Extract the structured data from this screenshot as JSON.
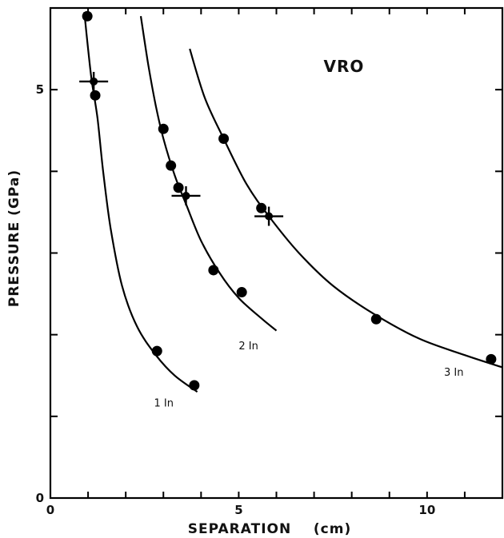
{
  "chart_data": {
    "type": "line",
    "title": "VRO",
    "xlabel": "SEPARATION    (cm)",
    "ylabel": "PRESSURE (GPa)",
    "xlim": [
      0,
      12
    ],
    "ylim": [
      0,
      6
    ],
    "x_ticks": [
      0,
      1,
      2,
      3,
      4,
      5,
      6,
      7,
      8,
      9,
      10,
      11,
      12
    ],
    "x_tick_labels": [
      {
        "value": 0,
        "label": "0"
      },
      {
        "value": 5,
        "label": "5"
      },
      {
        "value": 10,
        "label": "10"
      }
    ],
    "y_ticks": [
      0,
      1,
      2,
      3,
      4,
      5,
      6
    ],
    "y_tick_labels": [
      {
        "value": 0,
        "label": "0"
      },
      {
        "value": 5,
        "label": "5"
      }
    ],
    "grid": false,
    "series": [
      {
        "name": "1 In",
        "label_pos": [
          2.75,
          1.12
        ],
        "points": [
          {
            "x": 0.98,
            "y": 5.9
          },
          {
            "x": 1.19,
            "y": 4.93
          },
          {
            "x": 2.83,
            "y": 1.8
          },
          {
            "x": 3.82,
            "y": 1.38
          }
        ],
        "curve": [
          [
            0.9,
            5.95
          ],
          [
            1.0,
            5.5
          ],
          [
            1.1,
            5.1
          ],
          [
            1.25,
            4.65
          ],
          [
            1.4,
            4.0
          ],
          [
            1.6,
            3.3
          ],
          [
            1.9,
            2.6
          ],
          [
            2.3,
            2.1
          ],
          [
            2.8,
            1.75
          ],
          [
            3.3,
            1.5
          ],
          [
            3.9,
            1.3
          ]
        ],
        "marker": {
          "x": 1.15,
          "y": 5.1
        }
      },
      {
        "name": "2 In",
        "label_pos": [
          5.0,
          1.82
        ],
        "points": [
          {
            "x": 3.0,
            "y": 4.52
          },
          {
            "x": 3.2,
            "y": 4.07
          },
          {
            "x": 3.4,
            "y": 3.8
          },
          {
            "x": 4.33,
            "y": 2.79
          },
          {
            "x": 5.08,
            "y": 2.52
          }
        ],
        "curve": [
          [
            2.4,
            5.9
          ],
          [
            2.6,
            5.3
          ],
          [
            2.8,
            4.8
          ],
          [
            3.0,
            4.4
          ],
          [
            3.3,
            3.95
          ],
          [
            3.6,
            3.6
          ],
          [
            4.0,
            3.15
          ],
          [
            4.5,
            2.75
          ],
          [
            5.0,
            2.45
          ],
          [
            5.6,
            2.2
          ],
          [
            6.0,
            2.05
          ]
        ],
        "marker": {
          "x": 3.6,
          "y": 3.7
        }
      },
      {
        "name": "3 In",
        "label_pos": [
          10.45,
          1.5
        ],
        "points": [
          {
            "x": 4.6,
            "y": 4.4
          },
          {
            "x": 5.6,
            "y": 3.55
          },
          {
            "x": 8.65,
            "y": 2.19
          },
          {
            "x": 11.7,
            "y": 1.7
          }
        ],
        "curve": [
          [
            3.7,
            5.5
          ],
          [
            4.1,
            4.9
          ],
          [
            4.6,
            4.4
          ],
          [
            5.2,
            3.85
          ],
          [
            5.8,
            3.45
          ],
          [
            6.6,
            3.0
          ],
          [
            7.5,
            2.6
          ],
          [
            8.6,
            2.25
          ],
          [
            9.8,
            1.95
          ],
          [
            11.0,
            1.75
          ],
          [
            12.0,
            1.6
          ]
        ],
        "marker": {
          "x": 5.8,
          "y": 3.45
        }
      }
    ]
  }
}
